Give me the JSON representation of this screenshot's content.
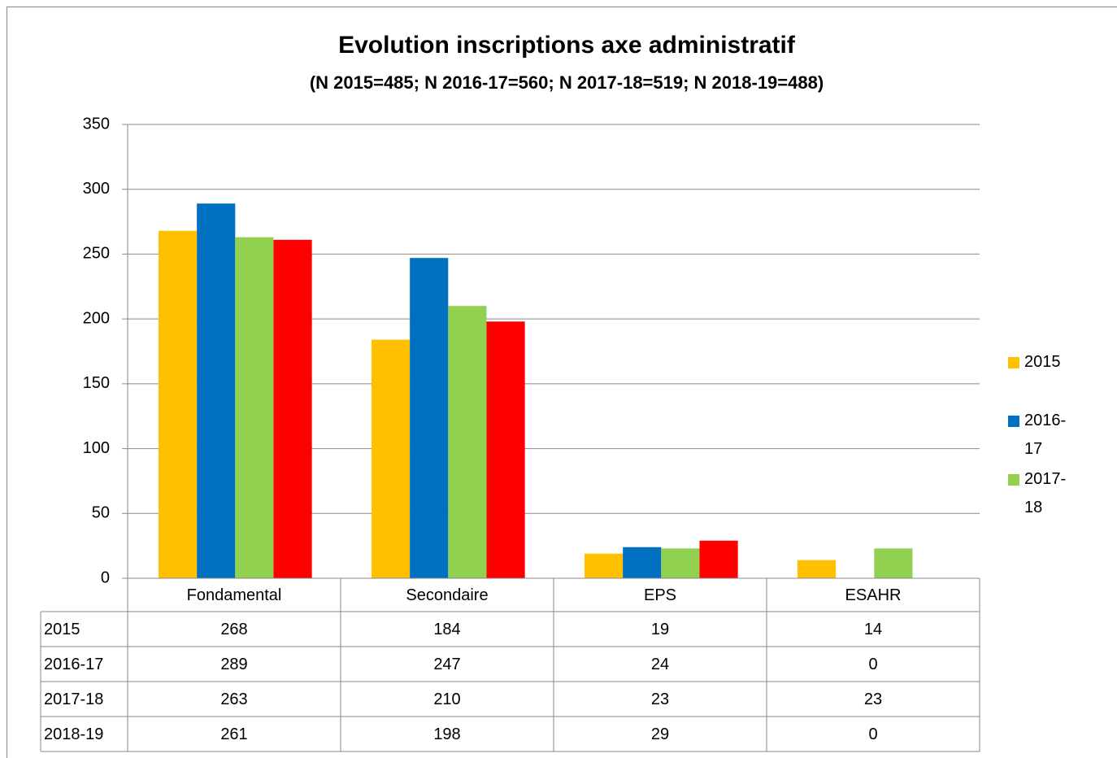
{
  "chart_data": {
    "type": "bar",
    "title": "Evolution inscriptions axe administratif",
    "subtitle": "(N 2015=485; N 2016-17=560; N 2017-18=519; N 2018-19=488)",
    "categories": [
      "Fondamental",
      "Secondaire",
      "EPS",
      "ESAHR"
    ],
    "series": [
      {
        "name": "2015",
        "color": "#ffc000",
        "values": [
          268,
          184,
          19,
          14
        ]
      },
      {
        "name": "2016-17",
        "color": "#0070c0",
        "values": [
          289,
          247,
          24,
          0
        ]
      },
      {
        "name": "2017-18",
        "color": "#92d050",
        "values": [
          263,
          210,
          23,
          23
        ]
      },
      {
        "name": "2018-19",
        "color": "#ff0000",
        "values": [
          261,
          198,
          29,
          0
        ]
      }
    ],
    "ylim": [
      0,
      350
    ],
    "yticks": [
      0,
      50,
      100,
      150,
      200,
      250,
      300,
      350
    ],
    "grid": true,
    "legend": "right",
    "data_table": true
  }
}
